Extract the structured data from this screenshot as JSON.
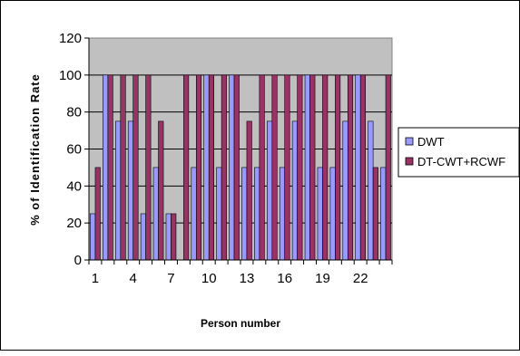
{
  "chart_data": {
    "type": "bar",
    "xlabel": "Person number",
    "ylabel": "% of Identification Rate",
    "ylim": [
      0,
      120
    ],
    "yticks": [
      0,
      20,
      40,
      60,
      80,
      100,
      120
    ],
    "x_tick_labels": [
      "1",
      "4",
      "7",
      "10",
      "13",
      "16",
      "19",
      "22"
    ],
    "categories": [
      1,
      2,
      3,
      4,
      5,
      6,
      7,
      8,
      9,
      10,
      11,
      12,
      13,
      14,
      15,
      16,
      17,
      18,
      19,
      20,
      21,
      22,
      23,
      24
    ],
    "series": [
      {
        "name": "DWT",
        "color": "#9999ff",
        "values": [
          25,
          100,
          75,
          75,
          25,
          50,
          25,
          0,
          50,
          100,
          50,
          100,
          50,
          50,
          75,
          50,
          75,
          100,
          50,
          50,
          75,
          100,
          75,
          50
        ]
      },
      {
        "name": "DT-CWT+RCWF",
        "color": "#993366",
        "values": [
          50,
          100,
          100,
          100,
          100,
          75,
          25,
          100,
          100,
          100,
          100,
          100,
          75,
          100,
          100,
          100,
          100,
          100,
          100,
          100,
          100,
          100,
          50,
          100
        ]
      }
    ],
    "grid": "horizontal",
    "legend_position": "right",
    "plot_background": "#c0c0c0"
  }
}
